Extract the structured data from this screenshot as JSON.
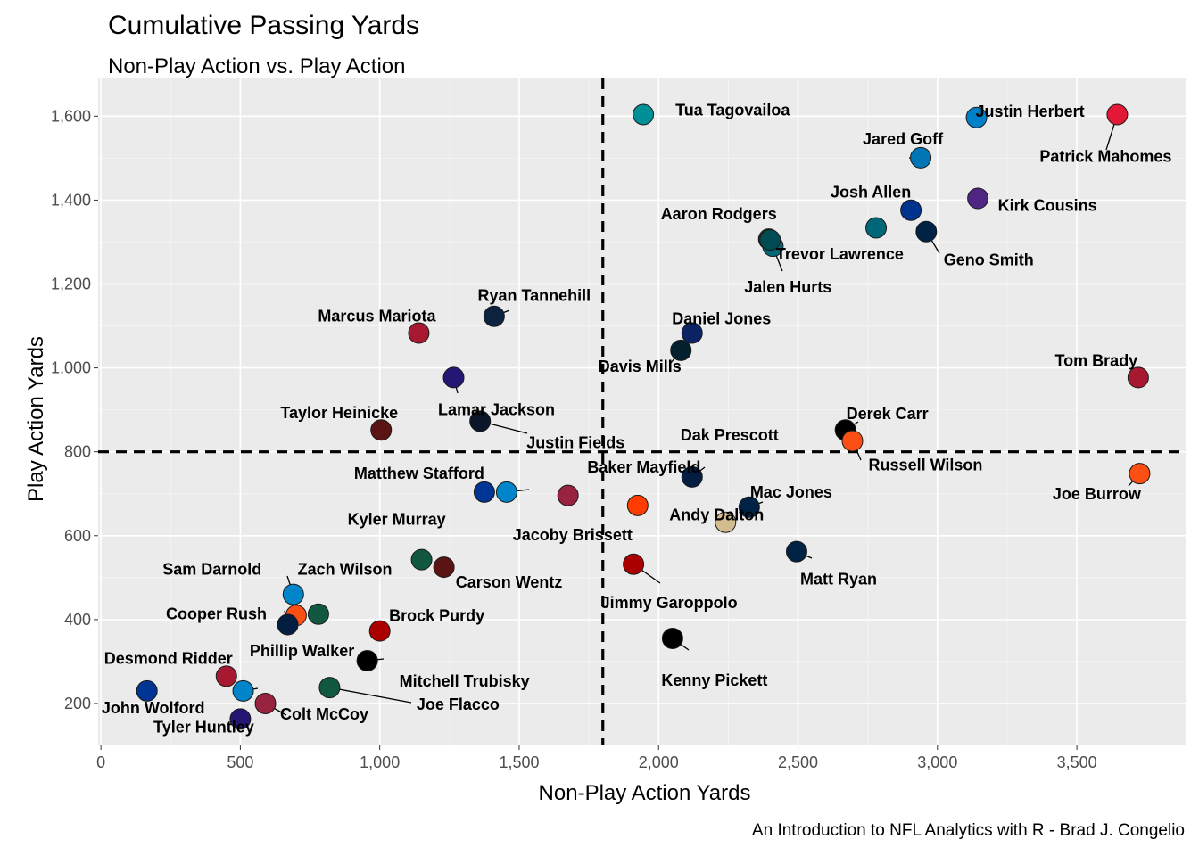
{
  "chart_data": {
    "type": "scatter",
    "title": "Cumulative Passing Yards",
    "subtitle": "Non-Play Action vs. Play Action",
    "caption": "An Introduction to NFL Analytics with R - Brad J. Congelio",
    "xlabel": "Non-Play Action Yards",
    "ylabel": "Play Action Yards",
    "xlim": [
      -10,
      3890
    ],
    "ylim": [
      100,
      1690
    ],
    "x_ticks": [
      {
        "value": 0,
        "label": "0"
      },
      {
        "value": 500,
        "label": "500"
      },
      {
        "value": 1000,
        "label": "1,000"
      },
      {
        "value": 1500,
        "label": "1,500"
      },
      {
        "value": 2000,
        "label": "2,000"
      },
      {
        "value": 2500,
        "label": "2,500"
      },
      {
        "value": 3000,
        "label": "3,000"
      },
      {
        "value": 3500,
        "label": "3,500"
      }
    ],
    "y_ticks": [
      {
        "value": 200,
        "label": "200"
      },
      {
        "value": 400,
        "label": "400"
      },
      {
        "value": 600,
        "label": "600"
      },
      {
        "value": 800,
        "label": "800"
      },
      {
        "value": 1000,
        "label": "1,000"
      },
      {
        "value": 1200,
        "label": "1,200"
      },
      {
        "value": 1400,
        "label": "1,400"
      },
      {
        "value": 1600,
        "label": "1,600"
      }
    ],
    "grid": true,
    "reference_lines": {
      "x": 1800,
      "y": 800
    },
    "points": [
      {
        "x": 1945,
        "y": 1604,
        "fill": "#008E97",
        "name": "Tua Tagovailoa"
      },
      {
        "x": 3140,
        "y": 1597,
        "fill": "#0080C6",
        "name": "Justin Herbert"
      },
      {
        "x": 3645,
        "y": 1604,
        "fill": "#E31837",
        "name": "Patrick Mahomes"
      },
      {
        "x": 2940,
        "y": 1501,
        "fill": "#0076B6",
        "name": "Jared Goff"
      },
      {
        "x": 2905,
        "y": 1376,
        "fill": "#00338D",
        "name": "Josh Allen"
      },
      {
        "x": 3145,
        "y": 1404,
        "fill": "#4F2683",
        "name": "Kirk Cousins"
      },
      {
        "x": 2395,
        "y": 1307,
        "fill": "#203731",
        "name": "Aaron Rodgers"
      },
      {
        "x": 2410,
        "y": 1290,
        "fill": "#006778",
        "name": "Trevor Lawrence"
      },
      {
        "x": 2400,
        "y": 1305,
        "fill": "#004C54",
        "name": "Jalen Hurts"
      },
      {
        "x": 2960,
        "y": 1325,
        "fill": "#002244",
        "name": "Geno Smith"
      },
      {
        "x": 2780,
        "y": 1334,
        "fill": "#006778",
        "name": ""
      },
      {
        "x": 1410,
        "y": 1123,
        "fill": "#0C2340",
        "name": "Ryan Tannehill"
      },
      {
        "x": 1140,
        "y": 1083,
        "fill": "#A71930",
        "name": "Marcus Mariota"
      },
      {
        "x": 2120,
        "y": 1083,
        "fill": "#0B2265",
        "name": "Daniel Jones"
      },
      {
        "x": 2080,
        "y": 1042,
        "fill": "#03202F",
        "name": "Davis Mills"
      },
      {
        "x": 1265,
        "y": 977,
        "fill": "#241773",
        "name": "Lamar Jackson"
      },
      {
        "x": 3720,
        "y": 977,
        "fill": "#A71930",
        "name": "Tom Brady"
      },
      {
        "x": 1360,
        "y": 873,
        "fill": "#0B162A",
        "name": "Justin Fields"
      },
      {
        "x": 1005,
        "y": 852,
        "fill": "#5A1414",
        "name": "Taylor Heinicke"
      },
      {
        "x": 2670,
        "y": 852,
        "fill": "#000000",
        "name": "Derek Carr"
      },
      {
        "x": 2695,
        "y": 826,
        "fill": "#FB4F14",
        "name": "Russell Wilson"
      },
      {
        "x": 2120,
        "y": 740,
        "fill": "#041E42",
        "name": "Dak Prescott"
      },
      {
        "x": 3725,
        "y": 748,
        "fill": "#FB4F14",
        "name": "Joe Burrow"
      },
      {
        "x": 1375,
        "y": 704,
        "fill": "#003594",
        "name": "Matthew Stafford"
      },
      {
        "x": 1455,
        "y": 704,
        "fill": "#0085CA",
        "name": "Baker Mayfield"
      },
      {
        "x": 1675,
        "y": 696,
        "fill": "#97233F",
        "name": "Kyler Murray"
      },
      {
        "x": 1925,
        "y": 672,
        "fill": "#FF3C00",
        "name": "Jacoby Brissett"
      },
      {
        "x": 2325,
        "y": 668,
        "fill": "#002244",
        "name": "Mac Jones"
      },
      {
        "x": 2240,
        "y": 632,
        "fill": "#D3BC8D",
        "name": "Andy Dalton"
      },
      {
        "x": 2495,
        "y": 562,
        "fill": "#002244",
        "name": "Matt Ryan"
      },
      {
        "x": 1150,
        "y": 543,
        "fill": "#125740",
        "name": "Zach Wilson"
      },
      {
        "x": 1230,
        "y": 525,
        "fill": "#5A1414",
        "name": "Carson Wentz"
      },
      {
        "x": 1910,
        "y": 532,
        "fill": "#AA0000",
        "name": "Jimmy Garoppolo"
      },
      {
        "x": 690,
        "y": 460,
        "fill": "#0085CA",
        "name": "Sam Darnold"
      },
      {
        "x": 700,
        "y": 410,
        "fill": "#FB4F14",
        "name": ""
      },
      {
        "x": 780,
        "y": 413,
        "fill": "#125740",
        "name": ""
      },
      {
        "x": 670,
        "y": 388,
        "fill": "#041E42",
        "name": "Cooper Rush"
      },
      {
        "x": 1000,
        "y": 373,
        "fill": "#AA0000",
        "name": "Brock Purdy"
      },
      {
        "x": 2050,
        "y": 355,
        "fill": "#000000",
        "name": "Kenny Pickett"
      },
      {
        "x": 955,
        "y": 302,
        "fill": "#000000",
        "name": "Mitchell Trubisky"
      },
      {
        "x": 450,
        "y": 265,
        "fill": "#A71930",
        "name": "Desmond Ridder"
      },
      {
        "x": 510,
        "y": 230,
        "fill": "#0085CA",
        "name": "Phillip Walker"
      },
      {
        "x": 820,
        "y": 238,
        "fill": "#125740",
        "name": "Joe Flacco"
      },
      {
        "x": 165,
        "y": 230,
        "fill": "#003594",
        "name": "John Wolford"
      },
      {
        "x": 590,
        "y": 200,
        "fill": "#97233F",
        "name": "Colt McCoy"
      },
      {
        "x": 500,
        "y": 163,
        "fill": "#241773",
        "name": "Tyler Huntley"
      }
    ]
  }
}
